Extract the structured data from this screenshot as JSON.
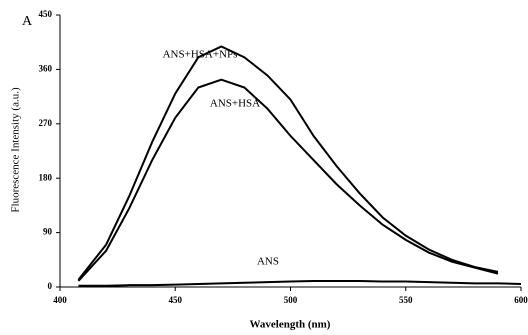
{
  "panel_label": "A",
  "chart_data": {
    "type": "line",
    "xlabel": "Wavelength (nm)",
    "ylabel": "Fluorescence Intensity (a.u.)",
    "x": [
      408,
      420,
      430,
      440,
      450,
      460,
      470,
      480,
      490,
      500,
      510,
      520,
      530,
      540,
      550,
      560,
      570,
      580,
      590,
      600
    ],
    "series": [
      {
        "name": "ANS+HSA+NPs",
        "color": "#000000",
        "values": [
          12,
          70,
          150,
          240,
          320,
          380,
          398,
          380,
          350,
          310,
          250,
          200,
          155,
          115,
          85,
          62,
          45,
          33,
          25,
          null
        ]
      },
      {
        "name": "ANS+HSA",
        "color": "#000000",
        "values": [
          10,
          60,
          130,
          210,
          280,
          330,
          343,
          330,
          295,
          250,
          210,
          170,
          135,
          103,
          78,
          57,
          42,
          32,
          22,
          null
        ]
      },
      {
        "name": "ANS",
        "color": "#000000",
        "values": [
          2,
          2,
          3,
          3,
          4,
          5,
          6,
          7,
          8,
          9,
          10,
          10,
          10,
          9,
          9,
          8,
          7,
          6,
          6,
          5
        ]
      }
    ],
    "xlim": [
      400,
      600
    ],
    "xticks": [
      400,
      450,
      500,
      550,
      600
    ],
    "ylim": [
      0,
      450
    ],
    "yticks": [
      0,
      90,
      180,
      270,
      360,
      450
    ],
    "grid": false
  }
}
